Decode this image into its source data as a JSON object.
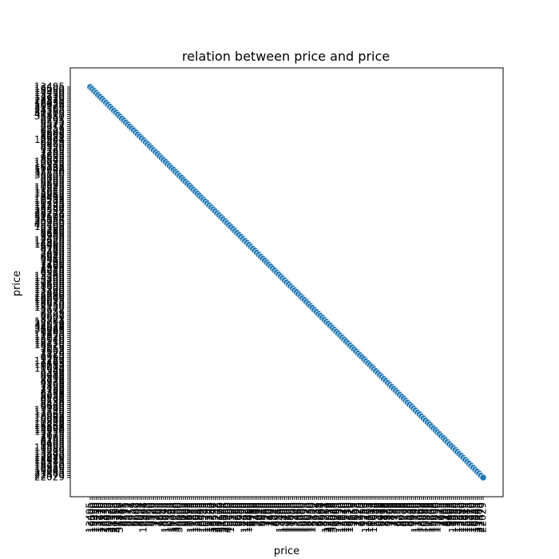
{
  "chart_data": {
    "type": "scatter",
    "title": "relation between price and price",
    "xlabel": "price",
    "ylabel": "price",
    "categories": [
      "13495",
      "16500",
      "13950",
      "17450",
      "15250",
      "17710",
      "18920",
      "23875",
      "16430",
      "16925",
      "20970",
      "21105",
      "24565",
      "30760",
      "41315",
      "36880",
      "5151",
      "6295",
      "6575",
      "5572",
      "6377",
      "7957",
      "6229",
      "6692",
      "7609",
      "8558",
      "8921",
      "12964",
      "6479",
      "6855",
      "5399",
      "6529",
      "7129",
      "7295",
      "7295",
      "7895",
      "9095",
      "8845",
      "10295",
      "12945",
      "10345",
      "6785",
      "11048",
      "32250",
      "35550",
      "36000",
      "5195",
      "6095",
      "6795",
      "6695",
      "7395",
      "10945",
      "11845",
      "13645",
      "15645",
      "8845",
      "8495",
      "10595",
      "10245",
      "10795",
      "11245",
      "18280",
      "18344",
      "25552",
      "28248",
      "28176",
      "31600",
      "34184",
      "35056",
      "40960",
      "45400",
      "16503",
      "5389",
      "6189",
      "6669",
      "7689",
      "9959",
      "8499",
      "12629",
      "14869",
      "14489",
      "6989",
      "8189",
      "9279",
      "5499",
      "7099",
      "6649",
      "6849",
      "7349",
      "7299",
      "7799",
      "7499",
      "7999",
      "8249",
      "8949",
      "9549",
      "13499",
      "14399",
      "13499",
      "17199",
      "19699",
      "18399",
      "11900",
      "13200",
      "12440",
      "13860",
      "15580",
      "16900",
      "16695",
      "17075",
      "16630",
      "17950",
      "18150",
      "5572",
      "7957",
      "6229",
      "6692",
      "7609",
      "8921",
      "12764",
      "22018",
      "32528",
      "34028",
      "37028",
      "9295",
      "9895",
      "11850",
      "12170",
      "15040",
      "15510",
      "18150",
      "18620",
      "5118",
      "7053",
      "7603",
      "7126",
      "7775",
      "9960",
      "9233",
      "11259",
      "7463",
      "10198",
      "8013",
      "11694",
      "5348",
      "6338",
      "6488",
      "6918",
      "7898",
      "8778",
      "6938",
      "7198",
      "7898",
      "7788",
      "7738",
      "8358",
      "9258",
      "8058",
      "8238",
      "9298",
      "9538",
      "8449",
      "9639",
      "9989",
      "11199",
      "11549",
      "17669",
      "8948",
      "10698",
      "9988",
      "10898",
      "11248",
      "16558",
      "15998",
      "15690",
      "15750",
      "7775",
      "7975",
      "7995",
      "8195",
      "8495",
      "9495",
      "9995",
      "11595",
      "9980",
      "13295",
      "13845",
      "12290",
      "12940",
      "13415",
      "15985",
      "16515",
      "18420",
      "18950",
      "16845",
      "19045",
      "21485",
      "22470",
      "22625"
    ],
    "values": [
      13495,
      16500,
      13950,
      17450,
      15250,
      17710,
      18920,
      23875,
      16430,
      16925,
      20970,
      21105,
      24565,
      30760,
      41315,
      36880,
      5151,
      6295,
      6575,
      5572,
      6377,
      7957,
      6229,
      6692,
      7609,
      8558,
      8921,
      12964,
      6479,
      6855,
      5399,
      6529,
      7129,
      7295,
      7295,
      7895,
      9095,
      8845,
      10295,
      12945,
      10345,
      6785,
      11048,
      32250,
      35550,
      36000,
      5195,
      6095,
      6795,
      6695,
      7395,
      10945,
      11845,
      13645,
      15645,
      8845,
      8495,
      10595,
      10245,
      10795,
      11245,
      18280,
      18344,
      25552,
      28248,
      28176,
      31600,
      34184,
      35056,
      40960,
      45400,
      16503,
      5389,
      6189,
      6669,
      7689,
      9959,
      8499,
      12629,
      14869,
      14489,
      6989,
      8189,
      9279,
      5499,
      7099,
      6649,
      6849,
      7349,
      7299,
      7799,
      7499,
      7999,
      8249,
      8949,
      9549,
      13499,
      14399,
      13499,
      17199,
      19699,
      18399,
      11900,
      13200,
      12440,
      13860,
      15580,
      16900,
      16695,
      17075,
      16630,
      17950,
      18150,
      5572,
      7957,
      6229,
      6692,
      7609,
      8921,
      12764,
      22018,
      32528,
      34028,
      37028,
      9295,
      9895,
      11850,
      12170,
      15040,
      15510,
      18150,
      18620,
      5118,
      7053,
      7603,
      7126,
      7775,
      9960,
      9233,
      11259,
      7463,
      10198,
      8013,
      11694,
      5348,
      6338,
      6488,
      6918,
      7898,
      8778,
      6938,
      7198,
      7898,
      7788,
      7738,
      8358,
      9258,
      8058,
      8238,
      9298,
      9538,
      8449,
      9639,
      9989,
      11199,
      11549,
      17669,
      8948,
      10698,
      9988,
      10898,
      11248,
      16558,
      15998,
      15690,
      15750,
      7775,
      7975,
      7995,
      8195,
      8495,
      9495,
      9995,
      11595,
      9980,
      13295,
      13845,
      12290,
      12940,
      13415,
      15985,
      16515,
      18420,
      18950,
      16845,
      19045,
      21485,
      22470,
      22625
    ],
    "last_tick_label": "22029",
    "point_color": "#1f77b4",
    "grid": false,
    "legend": "none"
  }
}
